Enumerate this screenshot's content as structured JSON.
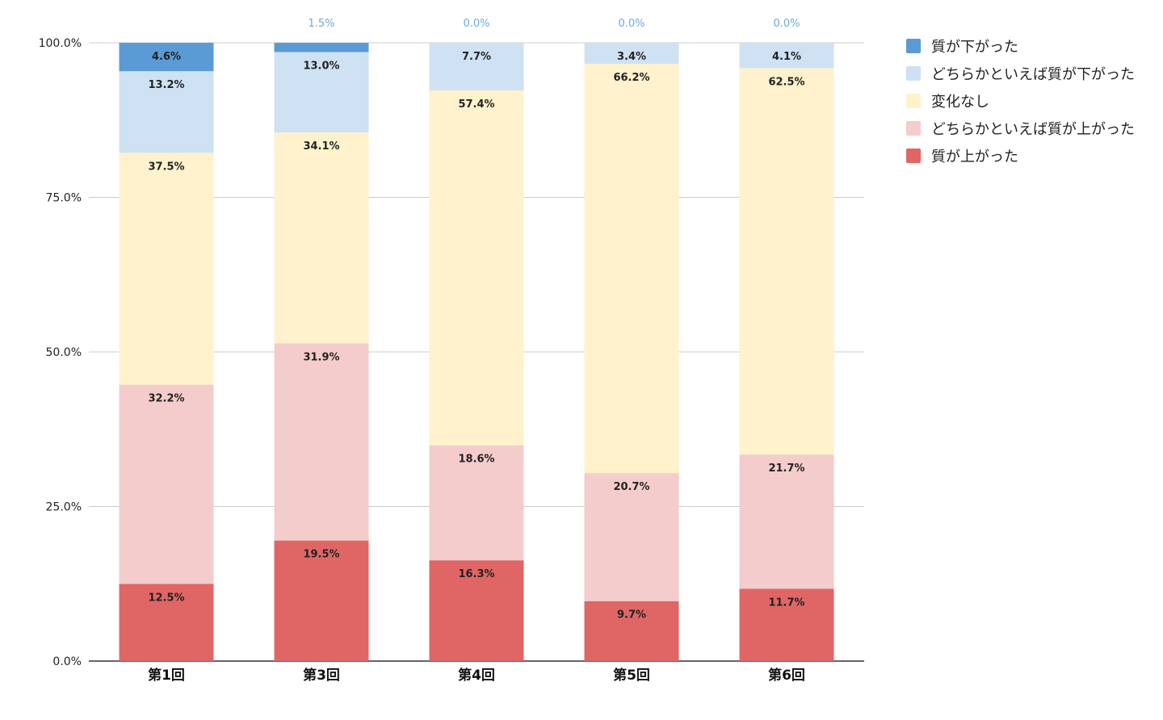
{
  "chart_data": {
    "type": "bar",
    "stacked": true,
    "categories": [
      "第1回",
      "第3回",
      "第4回",
      "第5回",
      "第6回"
    ],
    "series": [
      {
        "name": "質が上がった",
        "color": "#e06666",
        "values": [
          12.5,
          19.5,
          16.3,
          9.7,
          11.7
        ],
        "labels": [
          "12.5%",
          "19.5%",
          "16.3%",
          "9.7%",
          "11.7%"
        ]
      },
      {
        "name": "どちらかといえば質が上がった",
        "color": "#f4cccc",
        "values": [
          32.2,
          31.9,
          18.6,
          20.7,
          21.7
        ],
        "labels": [
          "32.2%",
          "31.9%",
          "18.6%",
          "20.7%",
          "21.7%"
        ]
      },
      {
        "name": "変化なし",
        "color": "#fff2cc",
        "values": [
          37.5,
          34.1,
          57.4,
          66.2,
          62.5
        ],
        "labels": [
          "37.5%",
          "34.1%",
          "57.4%",
          "66.2%",
          "62.5%"
        ]
      },
      {
        "name": "どちらかといえば質が下がった",
        "color": "#cfe2f3",
        "values": [
          13.2,
          13.0,
          7.7,
          3.4,
          4.1
        ],
        "labels": [
          "13.2%",
          "13.0%",
          "7.7%",
          "3.4%",
          "4.1%"
        ]
      },
      {
        "name": "質が下がった",
        "color": "#5b9bd5",
        "values": [
          4.6,
          1.5,
          0.0,
          0.0,
          0.0
        ],
        "labels": [
          "4.6%",
          "1.5%",
          "0.0%",
          "0.0%",
          "0.0%"
        ]
      }
    ],
    "legend_order": [
      "質が下がった",
      "どちらかといえば質が下がった",
      "変化なし",
      "どちらかといえば質が上がった",
      "質が上がった"
    ],
    "y_ticks": [
      "0.0%",
      "25.0%",
      "50.0%",
      "75.0%",
      "100.0%"
    ],
    "ylim": [
      0,
      100
    ],
    "title": "",
    "xlabel": "",
    "ylabel": "",
    "grid": true,
    "legend_position": "right",
    "top_label_color": "#6fa8dc"
  }
}
